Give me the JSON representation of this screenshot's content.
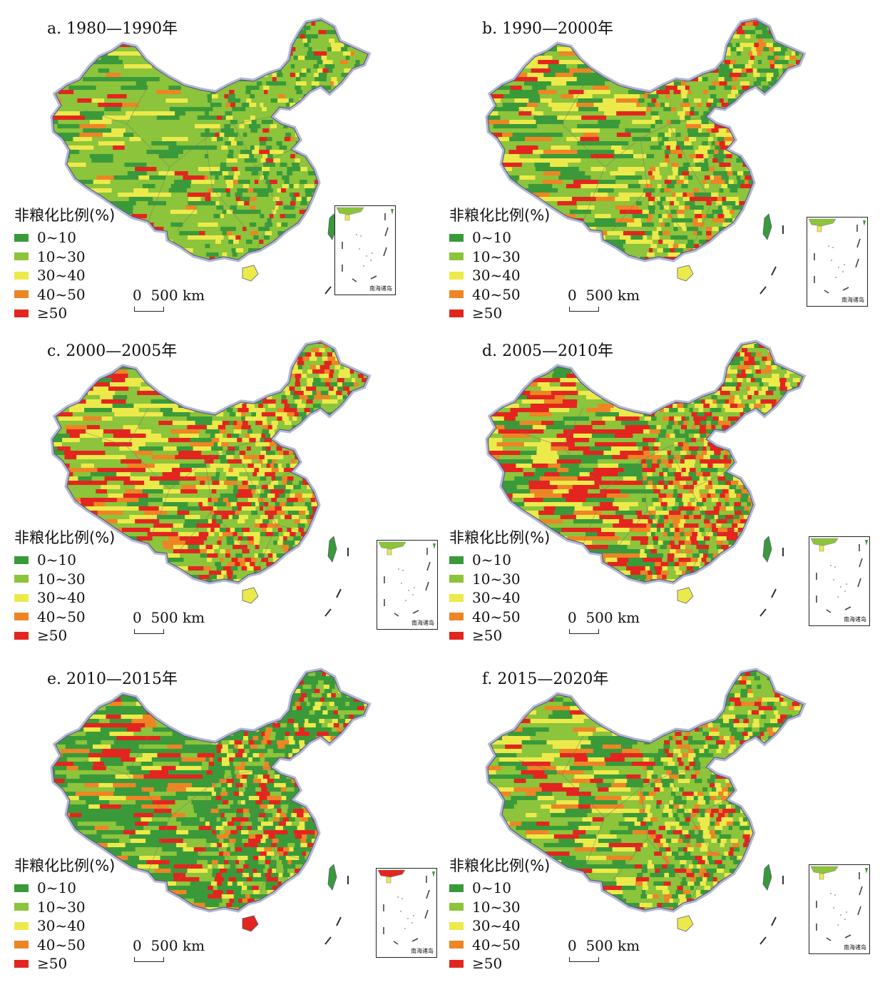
{
  "legend": {
    "title": "非粮化比例(%)",
    "classes": [
      {
        "label": "0~10",
        "color": "#3a9a3a"
      },
      {
        "label": "10~30",
        "color": "#8cc43b"
      },
      {
        "label": "30~40",
        "color": "#ecea4a"
      },
      {
        "label": "40~50",
        "color": "#ee8525"
      },
      {
        "label": "≥50",
        "color": "#e2261f"
      }
    ]
  },
  "scale_bar": "0  500 km",
  "inset_label": "南海诸岛",
  "panels": [
    {
      "title": "a. 1980—1990年",
      "mix": [
        0.22,
        0.58,
        0.12,
        0.02,
        0.06
      ]
    },
    {
      "title": "b. 1990—2000年",
      "mix": [
        0.22,
        0.4,
        0.18,
        0.1,
        0.1
      ]
    },
    {
      "title": "c. 2000—2005年",
      "mix": [
        0.14,
        0.34,
        0.22,
        0.1,
        0.2
      ]
    },
    {
      "title": "d. 2005—2010年",
      "mix": [
        0.18,
        0.26,
        0.2,
        0.12,
        0.24
      ]
    },
    {
      "title": "e. 2010—2015年",
      "mix": [
        0.48,
        0.16,
        0.12,
        0.08,
        0.16
      ]
    },
    {
      "title": "f. 2015—2020年",
      "mix": [
        0.24,
        0.4,
        0.18,
        0.08,
        0.1
      ]
    }
  ]
}
